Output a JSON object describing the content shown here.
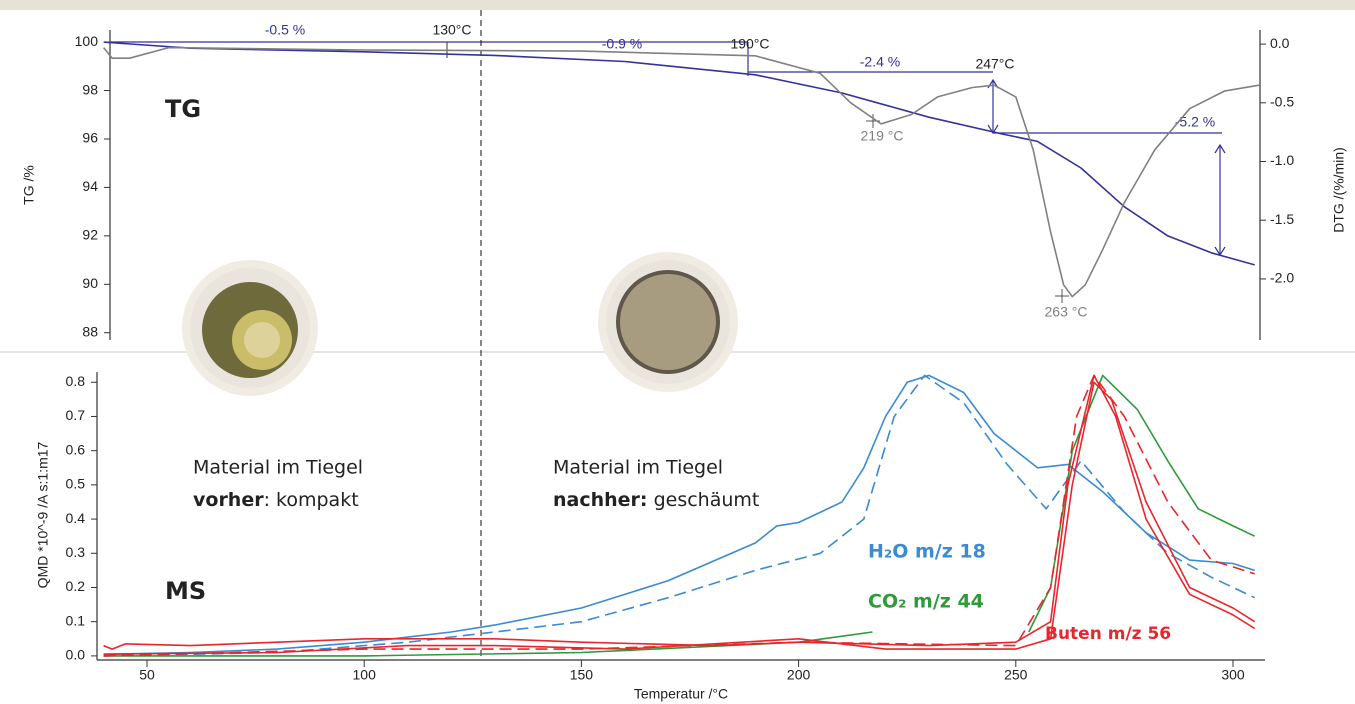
{
  "chart_data": [
    {
      "type": "line",
      "label": "TG",
      "xlim": [
        38.5,
        307
      ],
      "y_label": "TG /%",
      "y2_label": "DTG /(%/min)",
      "ylim": [
        87.7,
        100.5
      ],
      "yticks": [
        88,
        90,
        92,
        94,
        96,
        98,
        100
      ],
      "y2lim": [
        -2.52,
        0.12
      ],
      "y2ticks": [
        {
          "value": 0,
          "label": "0.0"
        },
        -0.5,
        {
          "value": -1,
          "label": "-1.0"
        },
        -1.5,
        {
          "value": -2,
          "label": "-2.0"
        }
      ],
      "annotations": [
        "-0.5 %",
        "130°C",
        "-0.9 %",
        "190°C",
        "-2.4 %",
        "247°C",
        "-5.2 %",
        "219 °C",
        "263 °C"
      ],
      "series": [
        {
          "color": "#33339a",
          "axis": "y",
          "x": [
            40,
            60,
            100,
            130,
            160,
            190,
            210,
            230,
            247,
            255,
            265,
            275,
            285,
            295,
            305
          ],
          "values": [
            100,
            99.75,
            99.6,
            99.45,
            99.2,
            98.65,
            97.9,
            96.9,
            96.2,
            95.9,
            94.8,
            93.2,
            92.0,
            91.3,
            90.8
          ]
        },
        {
          "color": "#808080",
          "axis": "y2",
          "x": [
            40,
            42,
            46,
            55,
            100,
            150,
            190,
            205,
            212,
            219,
            226,
            232,
            240,
            245,
            250,
            254,
            258,
            261,
            263,
            266,
            270,
            275,
            282,
            290,
            298,
            306
          ],
          "values": [
            -0.03,
            -0.12,
            -0.12,
            -0.03,
            -0.05,
            -0.06,
            -0.1,
            -0.25,
            -0.5,
            -0.68,
            -0.6,
            -0.45,
            -0.37,
            -0.35,
            -0.45,
            -0.9,
            -1.6,
            -2.05,
            -2.15,
            -2.05,
            -1.75,
            -1.35,
            -0.9,
            -0.55,
            -0.4,
            -0.35
          ]
        }
      ]
    },
    {
      "type": "line",
      "label": "MS",
      "xlim": [
        38.5,
        307
      ],
      "x_label": "Temperatur /°C",
      "y_label": "QMD *10^-9 /A s:1:m17",
      "xticks": [
        50,
        100,
        150,
        200,
        250,
        300
      ],
      "ylim": [
        -0.012,
        0.83
      ],
      "yticks": [
        {
          "value": 0,
          "label": "0.0"
        },
        0.1,
        0.2,
        0.3,
        0.4,
        0.5,
        0.6,
        0.7,
        0.8
      ],
      "captions": [
        [
          "Material im Tiegel",
          "vorher",
          ": kompakt"
        ],
        [
          "Material im Tiegel",
          "nachher:",
          " geschäumt"
        ]
      ],
      "series": [
        {
          "name": "H₂O  m/z 18",
          "color": "#3a8ad4",
          "dashed": false,
          "x": [
            40,
            60,
            80,
            100,
            120,
            130,
            150,
            170,
            190,
            195,
            200,
            210,
            215,
            220,
            225,
            230,
            238,
            245,
            255,
            262,
            270,
            280,
            290,
            300,
            305
          ],
          "values": [
            0.005,
            0.01,
            0.02,
            0.04,
            0.07,
            0.09,
            0.14,
            0.22,
            0.33,
            0.38,
            0.39,
            0.45,
            0.55,
            0.7,
            0.8,
            0.82,
            0.77,
            0.65,
            0.55,
            0.56,
            0.48,
            0.36,
            0.28,
            0.27,
            0.25
          ]
        },
        {
          "color": "#3a8ad4",
          "dashed": true,
          "x": [
            40,
            80,
            110,
            130,
            150,
            170,
            190,
            205,
            215,
            222,
            229,
            238,
            248,
            257,
            265,
            275,
            285,
            295,
            305
          ],
          "values": [
            0.0,
            0.01,
            0.04,
            0.07,
            0.1,
            0.17,
            0.25,
            0.3,
            0.4,
            0.7,
            0.82,
            0.74,
            0.56,
            0.43,
            0.57,
            0.42,
            0.3,
            0.23,
            0.17
          ]
        },
        {
          "name": "CO₂  m/z 44",
          "color": "#2e9a3a",
          "dashed": false,
          "x": [
            40,
            100,
            150,
            200,
            217,
            235,
            253,
            258,
            263,
            270,
            278,
            285,
            292,
            300,
            305
          ],
          "values": [
            0.0,
            0.0,
            0.01,
            0.04,
            0.07,
            null,
            0.07,
            0.2,
            0.6,
            0.82,
            0.72,
            0.57,
            0.43,
            0.38,
            0.35
          ]
        },
        {
          "name": "Buten m/z 56",
          "color": "#e8262b",
          "dashed": false,
          "x": [
            40,
            42,
            45,
            60,
            80,
            100,
            120,
            130,
            150,
            180,
            200,
            230,
            250,
            258,
            262,
            268,
            273,
            280,
            290,
            300,
            305
          ],
          "values": [
            0.03,
            0.02,
            0.035,
            0.03,
            0.04,
            0.05,
            0.05,
            0.05,
            0.04,
            0.03,
            0.04,
            0.03,
            0.04,
            0.1,
            0.5,
            0.82,
            0.7,
            0.4,
            0.18,
            0.12,
            0.08
          ]
        },
        {
          "color": "#e8262b",
          "dashed": false,
          "x": [
            40,
            80,
            110,
            130,
            160,
            200,
            220,
            250,
            258,
            263,
            268,
            272,
            280,
            290,
            300,
            305
          ],
          "values": [
            0.005,
            0.01,
            0.03,
            0.03,
            0.02,
            0.05,
            0.02,
            0.02,
            0.05,
            0.5,
            0.8,
            0.75,
            0.45,
            0.2,
            0.14,
            0.1
          ]
        },
        {
          "color": "#e8262b",
          "dashed": true,
          "x": [
            40,
            100,
            150,
            200,
            250,
            258,
            264,
            268,
            275,
            285,
            295,
            305
          ],
          "values": [
            0.0,
            0.02,
            0.02,
            0.04,
            0.03,
            0.2,
            0.7,
            0.82,
            0.7,
            0.45,
            0.28,
            0.24
          ]
        }
      ]
    }
  ]
}
